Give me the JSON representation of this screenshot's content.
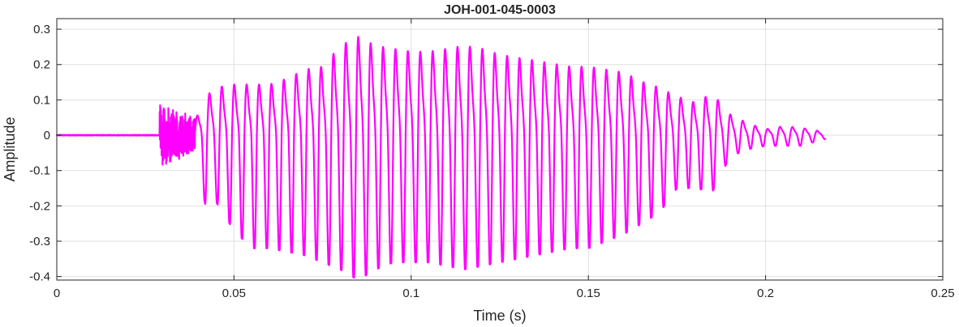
{
  "chart_data": {
    "type": "line",
    "title": "JOH-001-045-0003",
    "xlabel": "Time (s)",
    "ylabel": "Amplitude",
    "xlim": [
      0,
      0.25
    ],
    "ylim": [
      -0.41,
      0.33
    ],
    "x_ticks": [
      0,
      0.05,
      0.1,
      0.15,
      0.2,
      0.25
    ],
    "x_tick_labels": [
      "0",
      "0.05",
      "0.1",
      "0.15",
      "0.2",
      "0.25"
    ],
    "y_ticks": [
      -0.4,
      -0.3,
      -0.2,
      -0.1,
      0,
      0.1,
      0.2,
      0.3
    ],
    "y_tick_labels": [
      "-0.4",
      "-0.3",
      "-0.2",
      "-0.1",
      "0",
      "0.1",
      "0.2",
      "0.3"
    ],
    "grid": true,
    "line_color": "#ff00ff",
    "series": [
      {
        "signal_start_s": 0.0,
        "noise_burst_s": [
          0.029,
          0.039
        ],
        "voiced_onset_s": 0.039,
        "signal_end_s": 0.217,
        "approx_period_s": 0.0035,
        "envelope": [
          {
            "t": 0.039,
            "max": 0.05,
            "min": -0.07
          },
          {
            "t": 0.042,
            "max": 0.13,
            "min": -0.2
          },
          {
            "t": 0.045,
            "max": 0.16,
            "min": -0.19
          },
          {
            "t": 0.05,
            "max": 0.17,
            "min": -0.27
          },
          {
            "t": 0.055,
            "max": 0.17,
            "min": -0.32
          },
          {
            "t": 0.06,
            "max": 0.17,
            "min": -0.32
          },
          {
            "t": 0.065,
            "max": 0.19,
            "min": -0.33
          },
          {
            "t": 0.07,
            "max": 0.22,
            "min": -0.34
          },
          {
            "t": 0.075,
            "max": 0.23,
            "min": -0.36
          },
          {
            "t": 0.08,
            "max": 0.3,
            "min": -0.38
          },
          {
            "t": 0.085,
            "max": 0.33,
            "min": -0.41
          },
          {
            "t": 0.09,
            "max": 0.3,
            "min": -0.38
          },
          {
            "t": 0.095,
            "max": 0.29,
            "min": -0.36
          },
          {
            "t": 0.1,
            "max": 0.28,
            "min": -0.36
          },
          {
            "t": 0.105,
            "max": 0.28,
            "min": -0.36
          },
          {
            "t": 0.11,
            "max": 0.29,
            "min": -0.37
          },
          {
            "t": 0.115,
            "max": 0.3,
            "min": -0.38
          },
          {
            "t": 0.12,
            "max": 0.29,
            "min": -0.37
          },
          {
            "t": 0.125,
            "max": 0.27,
            "min": -0.36
          },
          {
            "t": 0.13,
            "max": 0.26,
            "min": -0.35
          },
          {
            "t": 0.135,
            "max": 0.25,
            "min": -0.34
          },
          {
            "t": 0.14,
            "max": 0.24,
            "min": -0.33
          },
          {
            "t": 0.145,
            "max": 0.23,
            "min": -0.32
          },
          {
            "t": 0.15,
            "max": 0.23,
            "min": -0.32
          },
          {
            "t": 0.155,
            "max": 0.22,
            "min": -0.3
          },
          {
            "t": 0.16,
            "max": 0.21,
            "min": -0.28
          },
          {
            "t": 0.165,
            "max": 0.18,
            "min": -0.25
          },
          {
            "t": 0.17,
            "max": 0.16,
            "min": -0.22
          },
          {
            "t": 0.175,
            "max": 0.13,
            "min": -0.15
          },
          {
            "t": 0.18,
            "max": 0.11,
            "min": -0.15
          },
          {
            "t": 0.185,
            "max": 0.14,
            "min": -0.16
          },
          {
            "t": 0.19,
            "max": 0.07,
            "min": -0.06
          },
          {
            "t": 0.195,
            "max": 0.04,
            "min": -0.04
          },
          {
            "t": 0.2,
            "max": 0.02,
            "min": -0.03
          },
          {
            "t": 0.205,
            "max": 0.03,
            "min": -0.03
          },
          {
            "t": 0.21,
            "max": 0.025,
            "min": -0.03
          },
          {
            "t": 0.217,
            "max": 0.01,
            "min": -0.01
          }
        ]
      }
    ]
  }
}
